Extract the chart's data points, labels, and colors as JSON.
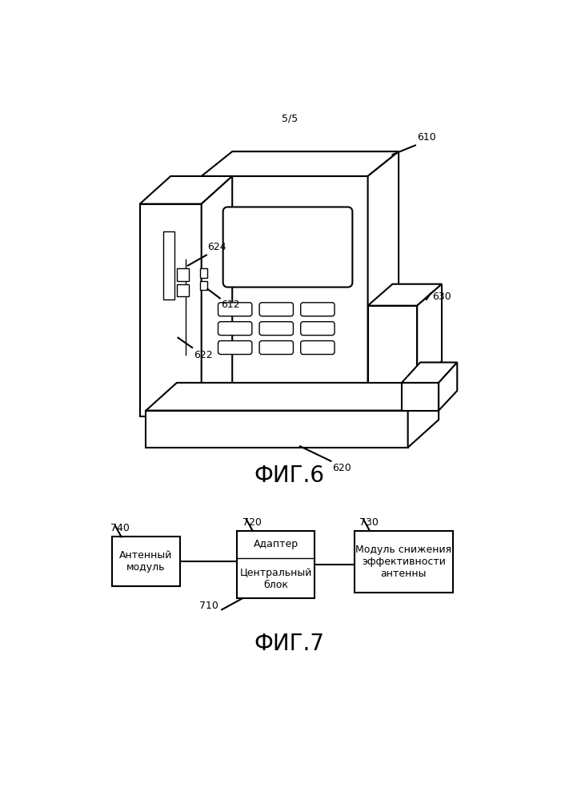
{
  "page_label": "5/5",
  "fig6_label": "ФИГ.6",
  "fig7_label": "ФИГ.7",
  "background_color": "#ffffff",
  "line_color": "#000000",
  "box740_text": "Антенный\nмодуль",
  "box720_top_text": "Адаптер",
  "box720_bot_text": "Центральный\nблок",
  "box730_text": "Модуль снижения\nэффективности\nантенны",
  "font_size_label": 9,
  "font_size_fig": 20,
  "font_size_box": 9,
  "font_size_page": 9,
  "lw_main": 1.5,
  "lw_thin": 1.0
}
